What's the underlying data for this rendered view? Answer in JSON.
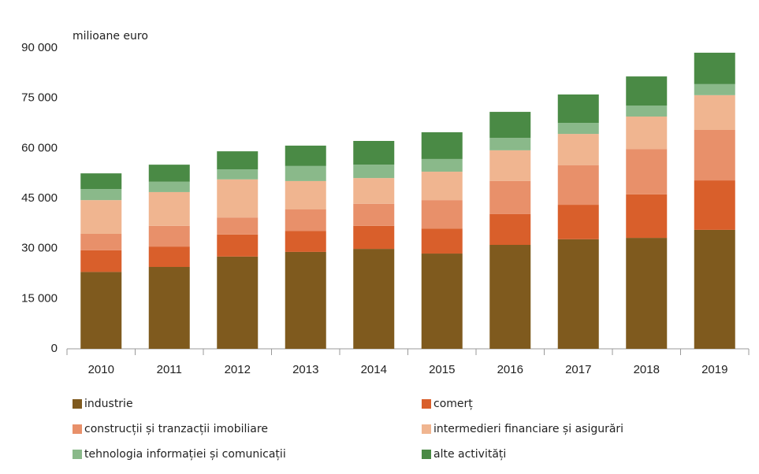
{
  "chart_data": {
    "type": "stacked_bar",
    "ylabel": "milioane euro",
    "categories": [
      "2010",
      "2011",
      "2012",
      "2013",
      "2014",
      "2015",
      "2016",
      "2017",
      "2018",
      "2019"
    ],
    "series": [
      {
        "name": "industrie",
        "color": "#7f5a1e",
        "values": [
          23000,
          24500,
          27600,
          29000,
          29900,
          28500,
          31100,
          32800,
          33200,
          35600
        ]
      },
      {
        "name": "comerț",
        "color": "#d95f2b",
        "values": [
          6500,
          6100,
          6600,
          6300,
          6900,
          7500,
          9200,
          10300,
          13000,
          14800
        ]
      },
      {
        "name": "construcții și tranzacții imobiliare",
        "color": "#e8906a",
        "values": [
          4900,
          6200,
          5100,
          6400,
          6600,
          8500,
          9900,
          11800,
          13600,
          15100
        ]
      },
      {
        "name": "intermedieri financiare și asigurări",
        "color": "#f0b590",
        "values": [
          10100,
          10100,
          11400,
          8500,
          7700,
          8500,
          9200,
          9400,
          9700,
          10400
        ]
      },
      {
        "name": "tehnologia informației și comunicații",
        "color": "#8ab98a",
        "values": [
          3300,
          3100,
          3000,
          4500,
          4000,
          3800,
          3700,
          3300,
          3300,
          3300
        ]
      },
      {
        "name": "alte activități",
        "color": "#4a8a45",
        "values": [
          4700,
          5100,
          5400,
          6100,
          7100,
          8000,
          7800,
          8500,
          8700,
          9400
        ]
      }
    ],
    "ylim": [
      0,
      90000
    ],
    "yticks": [
      0,
      {
        "value": 15000,
        "label": "15 000"
      },
      {
        "value": 30000,
        "label": "30 000"
      },
      {
        "value": 45000,
        "label": "45 000"
      },
      {
        "value": 60000,
        "label": "60 000"
      },
      {
        "value": 75000,
        "label": "75 000"
      },
      {
        "value": 90000,
        "label": "90 000"
      }
    ],
    "grid": false
  }
}
